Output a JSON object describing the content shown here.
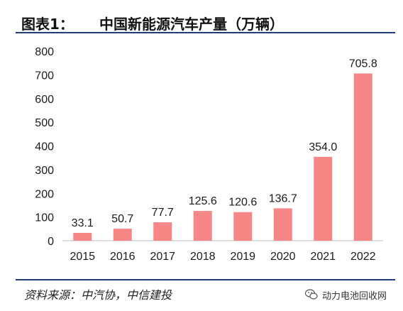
{
  "header": {
    "label": "图表1：",
    "title": "中国新能源汽车产量（万辆）"
  },
  "footer": {
    "source": "资料来源：中汽协，中信建投",
    "watermark": "动力电池回收网"
  },
  "colors": {
    "bar": "#f78787",
    "rule": "#1f3d7a",
    "axis": "#bfbfbf"
  },
  "chart_data": {
    "type": "bar",
    "title": "中国新能源汽车产量（万辆）",
    "categories": [
      "2015",
      "2016",
      "2017",
      "2018",
      "2019",
      "2020",
      "2021",
      "2022"
    ],
    "values": [
      33.1,
      50.7,
      77.7,
      125.6,
      120.6,
      136.7,
      354.0,
      705.8
    ],
    "value_labels": [
      "33.1",
      "50.7",
      "77.7",
      "125.6",
      "120.6",
      "136.7",
      "354.0",
      "705.8"
    ],
    "ylim": [
      0,
      800
    ],
    "yticks": [
      "0",
      "100",
      "200",
      "300",
      "400",
      "500",
      "600",
      "700",
      "800"
    ],
    "grid": false,
    "legend": "none"
  }
}
